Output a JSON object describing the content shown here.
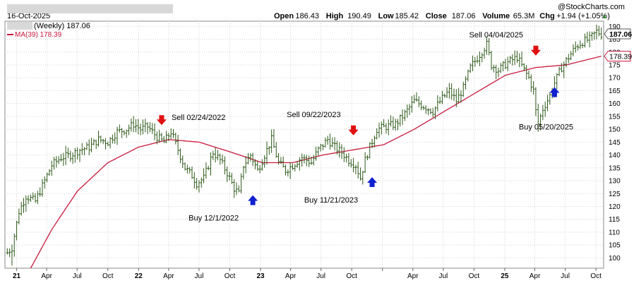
{
  "header": {
    "date": "16-Oct-2025",
    "ohlc": [
      {
        "label": "Open",
        "value": "186.43"
      },
      {
        "label": "High",
        "value": "190.49"
      },
      {
        "label": "Low",
        "value": "185.42"
      },
      {
        "label": "Close",
        "value": "187.06"
      },
      {
        "label": "Volume",
        "value": "65.3M"
      },
      {
        "label": "Chg",
        "value": "+1.94 (+1.05%)"
      }
    ],
    "watermark": "@StockCharts.com",
    "trend_symbol": "▲"
  },
  "legend": {
    "price_label": "(Weekly) 187.06",
    "ma_label": "MA(39) 178.39"
  },
  "colors": {
    "price": "#2e5a1a",
    "ma": "#c8183c",
    "sell_arrow": "#e01010",
    "buy_arrow": "#1020d0",
    "grid": "#d4d4d4",
    "redacted": "#d8d8d8"
  },
  "chart_data": {
    "type": "ohlc",
    "ylim": [
      96,
      192
    ],
    "yticks": [
      100,
      105,
      110,
      115,
      120,
      125,
      130,
      135,
      140,
      145,
      150,
      155,
      160,
      165,
      170,
      175,
      180,
      185,
      190
    ],
    "xlim": [
      "2020-11-27",
      "2025-10-24"
    ],
    "xticks": [
      {
        "date": "2021-01-01",
        "label": "21",
        "bold": true
      },
      {
        "date": "2021-04-01",
        "label": "Apr"
      },
      {
        "date": "2021-07-01",
        "label": "Jul"
      },
      {
        "date": "2021-10-01",
        "label": "Oct"
      },
      {
        "date": "2022-01-01",
        "label": "22",
        "bold": true
      },
      {
        "date": "2022-04-01",
        "label": "Apr"
      },
      {
        "date": "2022-07-01",
        "label": "Jul"
      },
      {
        "date": "2022-10-01",
        "label": "Oct"
      },
      {
        "date": "2023-01-01",
        "label": "23",
        "bold": true
      },
      {
        "date": "2023-04-01",
        "label": "Apr"
      },
      {
        "date": "2023-07-01",
        "label": "Jul"
      },
      {
        "date": "2023-10-01",
        "label": "Oct"
      },
      {
        "date": "2024-01-01",
        "label": "",
        "bold": true
      },
      {
        "date": "2024-04-01",
        "label": "Apr"
      },
      {
        "date": "2024-07-01",
        "label": "Jul"
      },
      {
        "date": "2024-10-01",
        "label": "Oct"
      },
      {
        "date": "2025-01-01",
        "label": "25",
        "bold": true
      },
      {
        "date": "2025-04-01",
        "label": "Apr"
      },
      {
        "date": "2025-07-01",
        "label": "Jul"
      },
      {
        "date": "2025-10-01",
        "label": "Oct"
      }
    ],
    "price_anchors": [
      [
        "2020-12-04",
        102
      ],
      [
        "2020-12-18",
        104
      ],
      [
        "2021-01-08",
        118
      ],
      [
        "2021-01-29",
        124
      ],
      [
        "2021-02-26",
        122
      ],
      [
        "2021-03-19",
        128
      ],
      [
        "2021-04-16",
        136
      ],
      [
        "2021-05-14",
        139
      ],
      [
        "2021-06-11",
        140
      ],
      [
        "2021-07-09",
        142
      ],
      [
        "2021-08-06",
        143
      ],
      [
        "2021-09-03",
        146
      ],
      [
        "2021-10-01",
        145
      ],
      [
        "2021-10-29",
        149
      ],
      [
        "2021-11-26",
        150
      ],
      [
        "2021-12-17",
        152
      ],
      [
        "2022-01-07",
        150
      ],
      [
        "2022-01-28",
        151
      ],
      [
        "2022-02-25",
        147
      ],
      [
        "2022-03-18",
        145
      ],
      [
        "2022-04-08",
        149
      ],
      [
        "2022-04-29",
        142
      ],
      [
        "2022-05-20",
        135
      ],
      [
        "2022-06-10",
        132
      ],
      [
        "2022-06-24",
        129
      ],
      [
        "2022-07-15",
        131
      ],
      [
        "2022-08-12",
        141
      ],
      [
        "2022-09-02",
        138
      ],
      [
        "2022-09-23",
        133
      ],
      [
        "2022-10-14",
        127
      ],
      [
        "2022-10-28",
        125
      ],
      [
        "2022-11-11",
        136
      ],
      [
        "2022-12-02",
        140
      ],
      [
        "2022-12-23",
        134
      ],
      [
        "2023-01-13",
        140
      ],
      [
        "2023-02-03",
        146
      ],
      [
        "2023-02-24",
        137
      ],
      [
        "2023-03-17",
        134
      ],
      [
        "2023-04-07",
        136
      ],
      [
        "2023-05-05",
        139
      ],
      [
        "2023-06-02",
        137
      ],
      [
        "2023-06-23",
        142
      ],
      [
        "2023-07-21",
        146
      ],
      [
        "2023-08-11",
        143
      ],
      [
        "2023-09-01",
        141
      ],
      [
        "2023-09-22",
        138
      ],
      [
        "2023-10-13",
        136
      ],
      [
        "2023-10-27",
        131
      ],
      [
        "2023-11-10",
        138
      ],
      [
        "2023-11-24",
        143
      ],
      [
        "2023-12-15",
        150
      ],
      [
        "2024-01-12",
        151
      ],
      [
        "2024-02-09",
        152
      ],
      [
        "2024-03-08",
        156
      ],
      [
        "2024-04-05",
        161
      ],
      [
        "2024-05-03",
        159
      ],
      [
        "2024-05-31",
        157
      ],
      [
        "2024-06-28",
        162
      ],
      [
        "2024-07-19",
        165
      ],
      [
        "2024-08-09",
        161
      ],
      [
        "2024-08-30",
        166
      ],
      [
        "2024-09-20",
        174
      ],
      [
        "2024-10-18",
        179
      ],
      [
        "2024-11-08",
        183
      ],
      [
        "2024-11-22",
        175
      ],
      [
        "2024-12-13",
        173
      ],
      [
        "2025-01-10",
        176
      ],
      [
        "2025-02-07",
        178
      ],
      [
        "2025-02-28",
        173
      ],
      [
        "2025-03-14",
        170
      ],
      [
        "2025-03-28",
        165
      ],
      [
        "2025-04-04",
        157
      ],
      [
        "2025-04-11",
        152
      ],
      [
        "2025-04-25",
        158
      ],
      [
        "2025-05-16",
        163
      ],
      [
        "2025-05-30",
        168
      ],
      [
        "2025-06-20",
        174
      ],
      [
        "2025-07-11",
        178
      ],
      [
        "2025-08-01",
        182
      ],
      [
        "2025-08-22",
        184
      ],
      [
        "2025-09-12",
        185
      ],
      [
        "2025-10-03",
        188
      ],
      [
        "2025-10-17",
        187
      ]
    ],
    "low_spikes": [
      {
        "date": "2020-12-18",
        "low": 97
      },
      {
        "date": "2025-04-11",
        "low": 149
      }
    ],
    "ma_anchors": [
      [
        "2021-02-12",
        96
      ],
      [
        "2021-04-16",
        111
      ],
      [
        "2021-07-02",
        126
      ],
      [
        "2021-10-01",
        137
      ],
      [
        "2021-12-31",
        143
      ],
      [
        "2022-04-01",
        146
      ],
      [
        "2022-07-01",
        145
      ],
      [
        "2022-10-07",
        141
      ],
      [
        "2023-01-06",
        137
      ],
      [
        "2023-04-07",
        137
      ],
      [
        "2023-07-07",
        140
      ],
      [
        "2023-10-06",
        142
      ],
      [
        "2024-01-05",
        144
      ],
      [
        "2024-04-05",
        150
      ],
      [
        "2024-07-05",
        157
      ],
      [
        "2024-10-04",
        164
      ],
      [
        "2025-01-03",
        171
      ],
      [
        "2025-04-04",
        174
      ],
      [
        "2025-07-04",
        175
      ],
      [
        "2025-10-17",
        178.4
      ]
    ],
    "signals": [
      {
        "type": "sell",
        "date": "2022-03-11",
        "price": 153,
        "label": "Sell 02/24/2022",
        "label_pos": "right"
      },
      {
        "type": "buy",
        "date": "2022-12-09",
        "price": 123,
        "label": "Buy 12/1/2022",
        "label_pos": "left"
      },
      {
        "type": "sell",
        "date": "2023-10-06",
        "price": 149,
        "label": "Sell 09/22/2023",
        "label_pos": "left"
      },
      {
        "type": "buy",
        "date": "2023-12-01",
        "price": 130,
        "label": "Buy 11/21/2023",
        "label_pos": "left"
      },
      {
        "type": "sell",
        "date": "2025-04-04",
        "price": 180,
        "label": "Sell 04/04/2025",
        "label_pos": "left"
      },
      {
        "type": "buy",
        "date": "2025-05-30",
        "price": 165,
        "label": "Buy 05/20/2025",
        "label_pos": "below"
      }
    ],
    "last_price": {
      "value": "187.06",
      "y": 187.06
    },
    "last_ma": {
      "value": "178.39",
      "y": 178.39
    }
  }
}
